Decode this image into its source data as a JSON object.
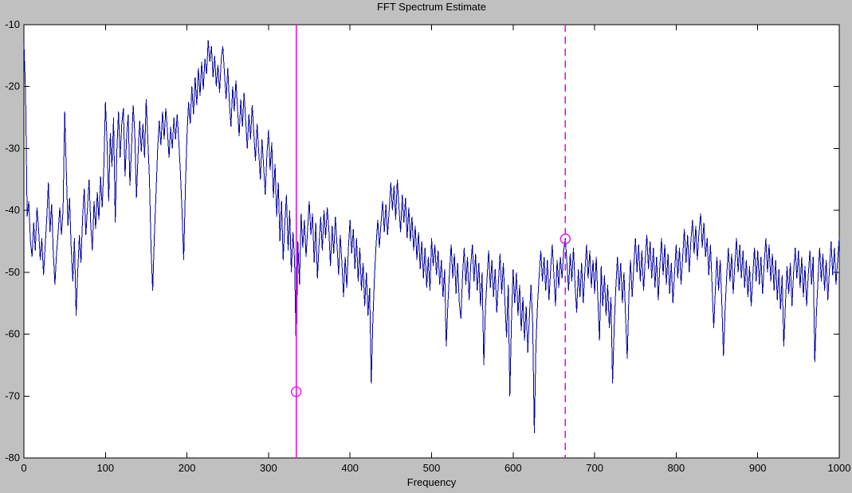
{
  "figure": {
    "background_color": "#c0c0c0",
    "plot_background_color": "#ffffff",
    "axis_color": "#000000"
  },
  "chart_data": {
    "type": "line",
    "title": "FFT Spectrum Estimate",
    "xlabel": "Frequency",
    "ylabel": "",
    "xlim": [
      0,
      1000
    ],
    "ylim": [
      -80,
      -10
    ],
    "x_ticks": [
      0,
      100,
      200,
      300,
      400,
      500,
      600,
      700,
      800,
      900,
      1000
    ],
    "y_ticks": [
      -80,
      -70,
      -60,
      -50,
      -40,
      -30,
      -20,
      -10
    ],
    "grid": false,
    "legend": null,
    "series": [
      {
        "name": "fft-spectrum",
        "color": "#0000a0",
        "style": "solid",
        "x_start": 0,
        "x_step": 2,
        "values": [
          -13.0,
          -20.5,
          -41.0,
          -38.5,
          -45.0,
          -47.5,
          -42.0,
          -46.5,
          -39.5,
          -43.0,
          -48.0,
          -44.5,
          -50.5,
          -46.0,
          -41.5,
          -35.5,
          -43.5,
          -39.0,
          -46.5,
          -52.0,
          -47.0,
          -43.5,
          -39.5,
          -44.0,
          -40.0,
          -24.0,
          -33.5,
          -42.5,
          -38.0,
          -46.0,
          -51.5,
          -44.5,
          -57.0,
          -50.0,
          -44.0,
          -48.5,
          -41.0,
          -36.5,
          -44.0,
          -39.5,
          -35.0,
          -42.5,
          -46.5,
          -38.5,
          -43.0,
          -37.0,
          -41.5,
          -34.5,
          -39.5,
          -33.0,
          -22.5,
          -29.0,
          -38.5,
          -27.5,
          -33.0,
          -25.0,
          -42.0,
          -30.5,
          -24.0,
          -31.5,
          -26.0,
          -23.5,
          -34.5,
          -28.0,
          -24.5,
          -36.0,
          -30.0,
          -23.0,
          -27.5,
          -38.0,
          -31.0,
          -25.5,
          -30.5,
          -26.0,
          -31.5,
          -22.0,
          -28.5,
          -35.0,
          -46.5,
          -53.0,
          -44.0,
          -37.5,
          -30.0,
          -25.5,
          -29.5,
          -24.0,
          -28.5,
          -23.5,
          -27.0,
          -31.5,
          -26.5,
          -30.0,
          -25.0,
          -28.5,
          -24.5,
          -29.0,
          -34.0,
          -40.5,
          -48.0,
          -36.5,
          -28.0,
          -22.5,
          -26.0,
          -20.0,
          -24.5,
          -18.5,
          -23.0,
          -17.0,
          -21.5,
          -16.0,
          -20.5,
          -15.5,
          -18.0,
          -12.5,
          -16.0,
          -13.5,
          -18.5,
          -15.0,
          -20.0,
          -16.5,
          -21.0,
          -15.5,
          -13.5,
          -18.0,
          -22.0,
          -17.0,
          -22.5,
          -26.5,
          -20.0,
          -24.0,
          -19.0,
          -23.5,
          -28.0,
          -22.0,
          -26.5,
          -21.0,
          -25.5,
          -30.0,
          -24.5,
          -28.5,
          -23.0,
          -27.5,
          -32.0,
          -26.0,
          -30.5,
          -35.0,
          -28.5,
          -33.0,
          -37.5,
          -31.0,
          -27.0,
          -33.5,
          -29.0,
          -38.0,
          -32.5,
          -41.0,
          -35.5,
          -45.0,
          -38.5,
          -48.0,
          -42.0,
          -37.5,
          -46.5,
          -40.0,
          -50.0,
          -43.5,
          -48.0,
          -63.5,
          -45.0,
          -52.0,
          -40.5,
          -46.0,
          -41.5,
          -47.5,
          -43.0,
          -38.5,
          -44.0,
          -40.5,
          -48.5,
          -42.0,
          -51.0,
          -45.5,
          -41.0,
          -46.5,
          -40.0,
          -44.5,
          -39.5,
          -43.0,
          -49.0,
          -42.5,
          -47.0,
          -41.0,
          -45.5,
          -50.5,
          -44.0,
          -48.5,
          -54.0,
          -47.5,
          -52.5,
          -46.0,
          -41.5,
          -47.0,
          -43.0,
          -49.5,
          -44.5,
          -51.5,
          -46.0,
          -53.0,
          -48.5,
          -55.5,
          -50.0,
          -57.0,
          -52.5,
          -68.0,
          -58.0,
          -50.5,
          -45.5,
          -41.5,
          -46.0,
          -42.0,
          -38.5,
          -43.5,
          -39.0,
          -44.0,
          -40.0,
          -35.5,
          -40.0,
          -36.0,
          -41.5,
          -35.0,
          -39.5,
          -43.5,
          -37.5,
          -42.0,
          -38.0,
          -44.5,
          -39.5,
          -45.0,
          -41.0,
          -46.5,
          -42.5,
          -48.0,
          -43.5,
          -49.5,
          -45.0,
          -51.0,
          -46.0,
          -52.5,
          -47.5,
          -53.0,
          -44.5,
          -49.0,
          -45.5,
          -50.5,
          -46.5,
          -52.0,
          -48.0,
          -54.0,
          -49.5,
          -62.0,
          -55.0,
          -50.0,
          -45.5,
          -51.0,
          -47.0,
          -53.5,
          -48.5,
          -55.0,
          -57.5,
          -50.5,
          -46.0,
          -52.0,
          -47.5,
          -54.5,
          -49.0,
          -45.5,
          -51.5,
          -47.0,
          -53.0,
          -48.5,
          -55.5,
          -50.0,
          -65.0,
          -56.0,
          -51.0,
          -46.5,
          -52.5,
          -48.0,
          -54.0,
          -49.5,
          -56.5,
          -51.5,
          -47.0,
          -53.5,
          -48.5,
          -55.0,
          -60.5,
          -52.0,
          -70.0,
          -57.5,
          -49.5,
          -55.0,
          -50.0,
          -57.0,
          -52.0,
          -59.5,
          -54.0,
          -61.0,
          -55.5,
          -63.0,
          -57.0,
          -52.0,
          -58.5,
          -76.0,
          -62.0,
          -55.0,
          -50.5,
          -46.5,
          -51.5,
          -47.5,
          -53.0,
          -48.0,
          -54.5,
          -49.5,
          -45.5,
          -50.5,
          -55.5,
          -48.0,
          -52.5,
          -47.5,
          -51.0,
          -46.5,
          -44.5,
          -48.5,
          -53.0,
          -47.0,
          -51.5,
          -46.0,
          -52.0,
          -56.5,
          -49.5,
          -54.0,
          -48.5,
          -55.0,
          -50.0,
          -45.5,
          -51.0,
          -46.5,
          -52.5,
          -48.0,
          -53.5,
          -47.5,
          -54.5,
          -61.0,
          -49.0,
          -55.5,
          -50.5,
          -57.0,
          -52.0,
          -59.0,
          -54.0,
          -68.0,
          -58.5,
          -52.5,
          -47.5,
          -53.0,
          -48.5,
          -55.0,
          -50.0,
          -57.5,
          -64.0,
          -53.5,
          -48.0,
          -54.0,
          -49.0,
          -44.5,
          -50.0,
          -45.5,
          -51.5,
          -46.5,
          -53.0,
          -48.0,
          -44.0,
          -49.5,
          -45.0,
          -51.0,
          -46.0,
          -52.5,
          -47.5,
          -54.5,
          -49.0,
          -44.5,
          -50.5,
          -45.5,
          -52.0,
          -47.0,
          -53.5,
          -48.5,
          -55.0,
          -50.0,
          -45.5,
          -51.0,
          -46.0,
          -52.0,
          -47.5,
          -43.0,
          -48.5,
          -44.0,
          -50.0,
          -45.0,
          -41.5,
          -47.0,
          -42.5,
          -48.0,
          -43.5,
          -40.5,
          -46.0,
          -42.0,
          -47.5,
          -44.5,
          -50.5,
          -45.5,
          -52.0,
          -59.0,
          -53.0,
          -47.5,
          -53.0,
          -48.0,
          -55.0,
          -63.5,
          -56.0,
          -50.5,
          -46.0,
          -51.5,
          -47.0,
          -53.5,
          -48.5,
          -44.5,
          -50.0,
          -45.5,
          -51.0,
          -46.5,
          -52.5,
          -48.0,
          -54.0,
          -49.0,
          -55.5,
          -50.5,
          -46.0,
          -51.5,
          -46.5,
          -52.0,
          -47.5,
          -53.5,
          -48.5,
          -44.5,
          -50.0,
          -45.5,
          -51.5,
          -47.0,
          -53.0,
          -48.0,
          -54.5,
          -49.5,
          -56.0,
          -50.5,
          -62.0,
          -55.0,
          -49.0,
          -53.5,
          -48.5,
          -55.5,
          -50.0,
          -46.0,
          -51.0,
          -46.5,
          -52.5,
          -47.5,
          -54.0,
          -49.0,
          -55.5,
          -50.5,
          -46.5,
          -52.0,
          -47.5,
          -64.5,
          -56.5,
          -51.0,
          -46.0,
          -51.5,
          -47.0,
          -53.0,
          -48.0,
          -54.5,
          -49.5,
          -45.0,
          -50.5,
          -46.0,
          -52.0,
          -48.0,
          -44.5
        ]
      }
    ],
    "vlines": [
      {
        "name": "pitch-line-solid",
        "x": 334,
        "color": "#ee00ee",
        "style": "solid"
      },
      {
        "name": "pitch-line-dashed",
        "x": 664,
        "color": "#ee00ee",
        "style": "dashed"
      }
    ],
    "markers": [
      {
        "name": "pitch-marker-1",
        "x": 334,
        "y": -69.3,
        "shape": "circle",
        "color": "#ee00ee"
      },
      {
        "name": "pitch-marker-2",
        "x": 664,
        "y": -44.6,
        "shape": "circle",
        "color": "#ee00ee"
      }
    ]
  }
}
